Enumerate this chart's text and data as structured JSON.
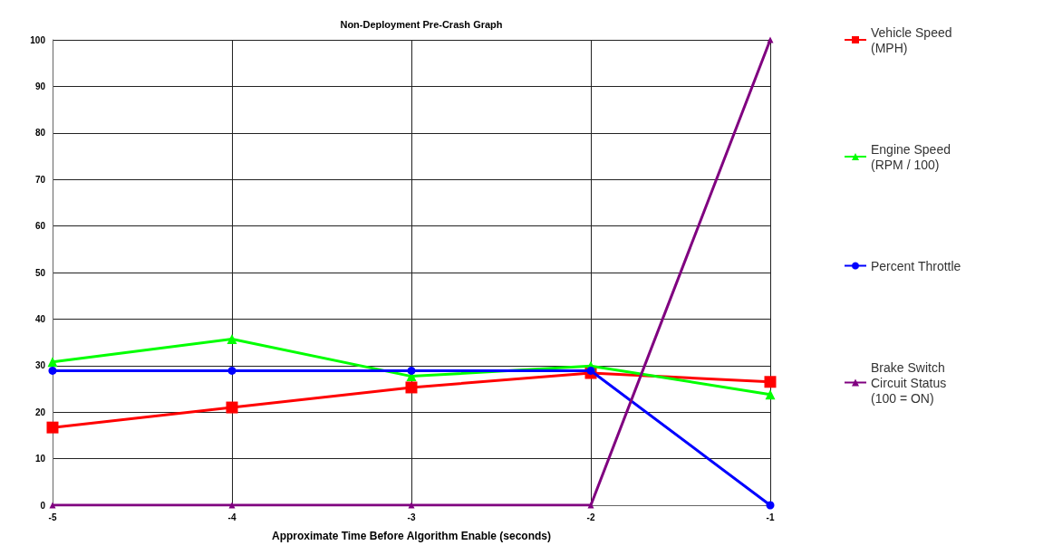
{
  "chart_data": {
    "type": "line",
    "title": "Non-Deployment Pre-Crash Graph",
    "xlabel": "Approximate Time Before Algorithm Enable (seconds)",
    "x": [
      -5,
      -4,
      -3,
      -2,
      -1
    ],
    "xlim": [
      -5,
      -1
    ],
    "xticks": [
      -5,
      -4,
      -3,
      -2,
      -1
    ],
    "ylim": [
      0,
      100
    ],
    "yticks": [
      0,
      10,
      20,
      30,
      40,
      50,
      60,
      70,
      80,
      90,
      100
    ],
    "grid": true,
    "legend": "right",
    "series": [
      {
        "name": "Vehicle Speed (MPH)",
        "color": "#ff0000",
        "marker": "square",
        "values": [
          16.7,
          21,
          25.3,
          28.4,
          26.5
        ]
      },
      {
        "name": "Engine Speed (RPM / 100)",
        "color": "#00ff00",
        "marker": "triangle",
        "values": [
          30.8,
          35.7,
          27.7,
          29.9,
          23.8
        ]
      },
      {
        "name": "Percent Throttle",
        "color": "#0000ff",
        "marker": "circle",
        "values": [
          28.9,
          28.9,
          28.9,
          28.9,
          0
        ]
      },
      {
        "name": "Brake Switch Circuit Status (100 = ON)",
        "color": "#800080",
        "marker": "triangle",
        "values": [
          0,
          0,
          0,
          0,
          100
        ]
      }
    ]
  }
}
